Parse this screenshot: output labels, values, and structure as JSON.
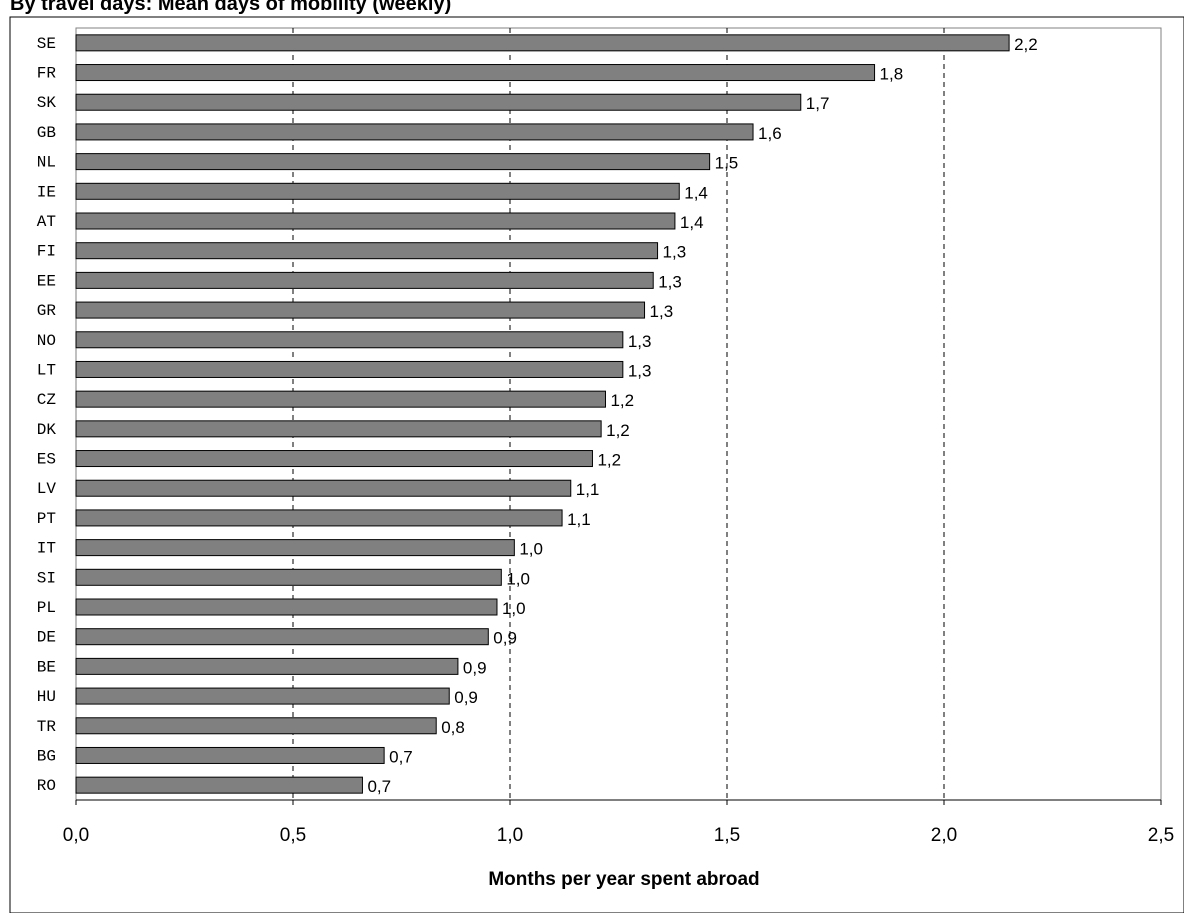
{
  "chart_data": {
    "type": "bar",
    "orientation": "horizontal",
    "title": "By travel days: Mean days of mobility (weekly)",
    "xlabel": "Months per year spent abroad",
    "ylabel": "",
    "xlim": [
      0,
      2.5
    ],
    "xticks": [
      0.0,
      0.5,
      1.0,
      1.5,
      2.0,
      2.5
    ],
    "xtick_labels": [
      "0,0",
      "0,5",
      "1,0",
      "1,5",
      "2,0",
      "2,5"
    ],
    "grid": "vertical dashed at 1.0, 1.5, 2.0",
    "legend": "none",
    "bar_color": "#808080",
    "categories": [
      "SE",
      "FR",
      "SK",
      "GB",
      "NL",
      "IE",
      "AT",
      "FI",
      "EE",
      "GR",
      "NO",
      "LT",
      "CZ",
      "DK",
      "ES",
      "LV",
      "PT",
      "IT",
      "SI",
      "PL",
      "DE",
      "BE",
      "HU",
      "TR",
      "BG",
      "RO"
    ],
    "values": [
      2.15,
      1.84,
      1.67,
      1.56,
      1.46,
      1.39,
      1.38,
      1.34,
      1.33,
      1.31,
      1.26,
      1.26,
      1.22,
      1.21,
      1.19,
      1.14,
      1.12,
      1.01,
      0.98,
      0.97,
      0.95,
      0.88,
      0.86,
      0.83,
      0.71,
      0.66
    ],
    "value_labels": [
      "2,2",
      "1,8",
      "1,7",
      "1,6",
      "1,5",
      "1,4",
      "1,4",
      "1,3",
      "1,3",
      "1,3",
      "1,3",
      "1,3",
      "1,2",
      "1,2",
      "1,2",
      "1,1",
      "1,1",
      "1,0",
      "1,0",
      "1,0",
      "0,9",
      "0,9",
      "0,9",
      "0,8",
      "0,7",
      "0,7"
    ]
  }
}
